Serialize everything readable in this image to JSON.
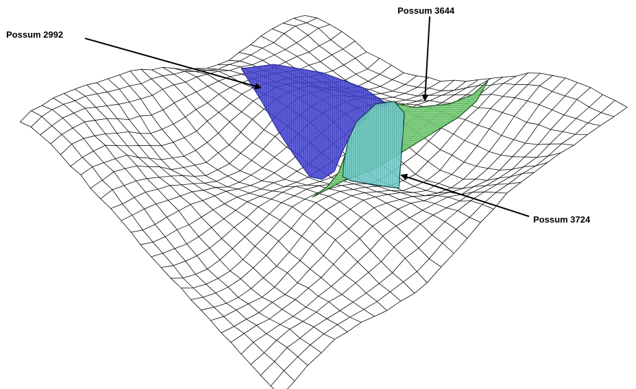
{
  "labels": {
    "possum_2992": "Possum 2992",
    "possum_3644": "Possum 3644",
    "possum_3724": "Possum 3724"
  },
  "colors": {
    "mesh": "#000000",
    "possum_2992_fill": "#4a4ad8",
    "possum_3644_fill": "#7ed67e",
    "possum_3724_fill": "#7fd8d8"
  }
}
